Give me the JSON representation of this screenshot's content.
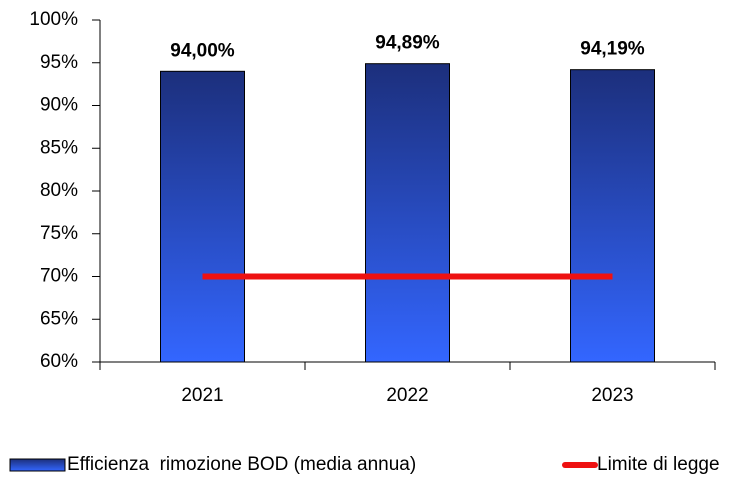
{
  "chart_data": {
    "type": "bar",
    "categories": [
      "2021",
      "2022",
      "2023"
    ],
    "series": [
      {
        "name": "Efficienza  rimozione BOD (media annua)",
        "type": "bar",
        "gradient": [
          "#1c2f7c",
          "#3366ff"
        ],
        "values": [
          94.0,
          94.89,
          94.19
        ],
        "value_labels": [
          "94,00%",
          "94,89%",
          "94,19%"
        ]
      },
      {
        "name": "Limite di legge",
        "type": "line",
        "color": "#ee1111",
        "values": [
          70,
          70,
          70
        ]
      }
    ],
    "ylim": [
      60,
      100
    ],
    "yticks": [
      {
        "value": 60,
        "label": "60%"
      },
      {
        "value": 65,
        "label": "65%"
      },
      {
        "value": 70,
        "label": "70%"
      },
      {
        "value": 75,
        "label": "75%"
      },
      {
        "value": 80,
        "label": "80%"
      },
      {
        "value": 85,
        "label": "85%"
      },
      {
        "value": 90,
        "label": "90%"
      },
      {
        "value": 95,
        "label": "95%"
      },
      {
        "value": 100,
        "label": "100%"
      }
    ],
    "grid": false
  }
}
